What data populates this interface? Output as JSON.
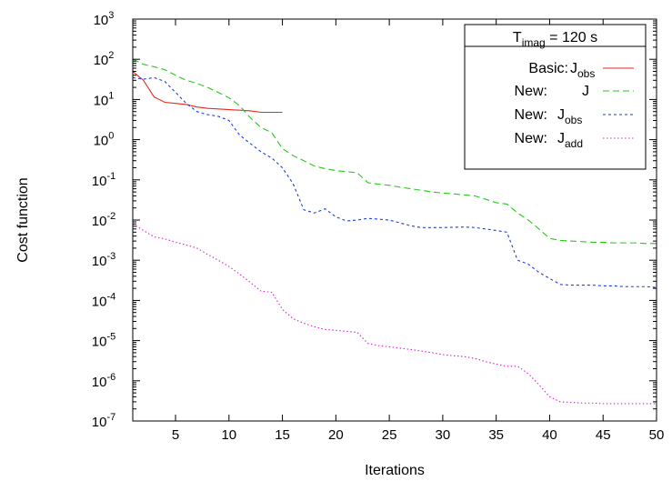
{
  "chart_data": {
    "type": "line",
    "title": "",
    "xlabel": "Iterations",
    "ylabel": "Cost function",
    "xlim": [
      1,
      50
    ],
    "ylim": [
      1e-07,
      1000
    ],
    "yscale": "log",
    "grid": false,
    "legend_position": "top-right",
    "legend_title": {
      "base": "T",
      "sub": "imag",
      "rest": " = 120 s"
    },
    "xticks": [
      5,
      10,
      15,
      20,
      25,
      30,
      35,
      40,
      45,
      50
    ],
    "yticks": [
      {
        "value": 1e-07,
        "base": "10",
        "exp": "-7"
      },
      {
        "value": 1e-06,
        "base": "10",
        "exp": "-6"
      },
      {
        "value": 1e-05,
        "base": "10",
        "exp": "-5"
      },
      {
        "value": 0.0001,
        "base": "10",
        "exp": "-4"
      },
      {
        "value": 0.001,
        "base": "10",
        "exp": "-3"
      },
      {
        "value": 0.01,
        "base": "10",
        "exp": "-2"
      },
      {
        "value": 0.1,
        "base": "10",
        "exp": "-1"
      },
      {
        "value": 1,
        "base": "10",
        "exp": "0"
      },
      {
        "value": 10,
        "base": "10",
        "exp": "1"
      },
      {
        "value": 100,
        "base": "10",
        "exp": "2"
      },
      {
        "value": 1000,
        "base": "10",
        "exp": "3"
      }
    ],
    "series": [
      {
        "legend_prefix": "Basic:",
        "legend_var": "J",
        "legend_sub": "obs",
        "color": "#e8291c",
        "dash": "none",
        "x": [
          1,
          2,
          3,
          4,
          5,
          6,
          7,
          8,
          9,
          10,
          11,
          12,
          13,
          14,
          15
        ],
        "y": [
          50,
          30,
          11.5,
          8.5,
          8,
          7.5,
          6.5,
          6,
          5.8,
          5.6,
          5.4,
          5.2,
          4.8,
          4.8,
          4.8
        ]
      },
      {
        "legend_prefix": "New:",
        "legend_var": "J",
        "legend_sub": "",
        "color": "#28c81c",
        "dash": "7,4",
        "x": [
          1,
          2,
          3,
          4,
          5,
          6,
          7,
          8,
          9,
          10,
          11,
          12,
          13,
          14,
          15,
          16,
          17,
          18,
          19,
          20,
          21,
          22,
          23,
          24,
          25,
          26,
          27,
          28,
          29,
          30,
          31,
          32,
          33,
          34,
          35,
          36,
          37,
          38,
          39,
          40,
          41,
          42,
          43,
          44,
          45,
          46,
          47,
          48,
          49,
          50
        ],
        "y": [
          100,
          75,
          65,
          55,
          40,
          30,
          25,
          20,
          15,
          11,
          7,
          3.5,
          2,
          1.5,
          0.6,
          0.4,
          0.3,
          0.22,
          0.19,
          0.17,
          0.16,
          0.15,
          0.085,
          0.078,
          0.073,
          0.066,
          0.06,
          0.055,
          0.05,
          0.047,
          0.045,
          0.042,
          0.04,
          0.033,
          0.027,
          0.025,
          0.015,
          0.01,
          0.006,
          0.0035,
          0.0031,
          0.003,
          0.0029,
          0.0028,
          0.0028,
          0.0027,
          0.0027,
          0.0027,
          0.0026,
          0.0026
        ]
      },
      {
        "legend_prefix": "New:",
        "legend_var": "J",
        "legend_sub": "obs",
        "color": "#1a3ee0",
        "dash": "3,3",
        "x": [
          1,
          2,
          3,
          4,
          5,
          6,
          7,
          8,
          9,
          10,
          11,
          12,
          13,
          14,
          15,
          16,
          17,
          18,
          19,
          20,
          21,
          22,
          23,
          24,
          25,
          26,
          27,
          28,
          29,
          30,
          31,
          32,
          33,
          34,
          35,
          36,
          37,
          38,
          39,
          40,
          41,
          42,
          43,
          44,
          45,
          46,
          47,
          48,
          49,
          50
        ],
        "y": [
          35,
          32,
          35,
          28,
          15,
          8,
          5,
          4.2,
          3.8,
          3,
          1.3,
          0.8,
          0.5,
          0.35,
          0.2,
          0.08,
          0.018,
          0.015,
          0.019,
          0.012,
          0.0095,
          0.01,
          0.011,
          0.0105,
          0.01,
          0.0085,
          0.0072,
          0.0065,
          0.0065,
          0.0065,
          0.0066,
          0.0067,
          0.0065,
          0.006,
          0.0055,
          0.005,
          0.001,
          0.0008,
          0.0005,
          0.00035,
          0.00025,
          0.00024,
          0.00024,
          0.00024,
          0.00023,
          0.00023,
          0.00022,
          0.00022,
          0.00022,
          0.00021
        ]
      },
      {
        "legend_prefix": "New:",
        "legend_var": "J",
        "legend_sub": "add",
        "color": "#e01fd6",
        "dash": "1.5,2.5",
        "x": [
          1,
          2,
          3,
          4,
          5,
          6,
          7,
          8,
          9,
          10,
          11,
          12,
          13,
          14,
          15,
          16,
          17,
          18,
          19,
          20,
          21,
          22,
          23,
          24,
          25,
          26,
          27,
          28,
          29,
          30,
          31,
          32,
          33,
          34,
          35,
          36,
          37,
          38,
          39,
          40,
          41,
          42,
          43,
          44,
          45,
          46,
          47,
          48,
          49,
          50
        ],
        "y": [
          0.008,
          0.0055,
          0.0038,
          0.0034,
          0.0028,
          0.0024,
          0.002,
          0.0014,
          0.001,
          0.0007,
          0.00045,
          0.00028,
          0.00017,
          0.00016,
          6e-05,
          3.5e-05,
          2.7e-05,
          2.2e-05,
          1.9e-05,
          1.8e-05,
          1.7e-05,
          1.6e-05,
          8.5e-06,
          7.5e-06,
          7e-06,
          6.5e-06,
          6e-06,
          5.5e-06,
          5e-06,
          4.5e-06,
          4.2e-06,
          4e-06,
          3.6e-06,
          3e-06,
          2.6e-06,
          2.3e-06,
          2.3e-06,
          1.5e-06,
          8e-07,
          4e-07,
          3e-07,
          2.9e-07,
          2.8e-07,
          2.8e-07,
          2.7e-07,
          2.7e-07,
          2.7e-07,
          2.7e-07,
          2.7e-07,
          2.7e-07
        ]
      }
    ]
  }
}
